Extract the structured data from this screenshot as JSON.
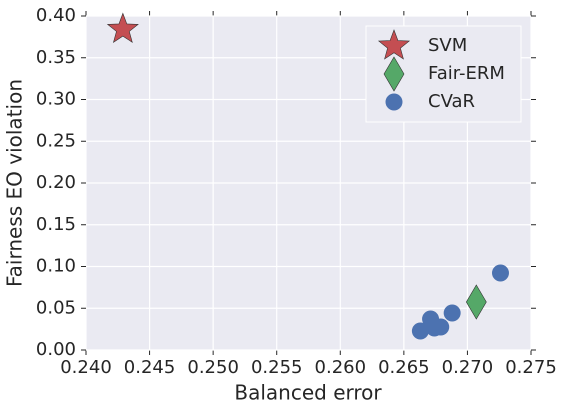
{
  "chart_data": {
    "type": "scatter",
    "x_label": "Balanced error",
    "y_label": "Fairness EO violation",
    "xlim": [
      0.24,
      0.275
    ],
    "ylim": [
      0,
      0.4
    ],
    "xticks": [
      {
        "value": 0.24,
        "label": "0.240"
      },
      {
        "value": 0.245,
        "label": "0.245"
      },
      {
        "value": 0.25,
        "label": "0.250"
      },
      {
        "value": 0.255,
        "label": "0.255"
      },
      {
        "value": 0.26,
        "label": "0.260"
      },
      {
        "value": 0.265,
        "label": "0.265"
      },
      {
        "value": 0.27,
        "label": "0.270"
      },
      {
        "value": 0.275,
        "label": "0.275"
      }
    ],
    "yticks": [
      {
        "value": 0,
        "label": "0.00"
      },
      {
        "value": 0.05,
        "label": "0.05"
      },
      {
        "value": 0.1,
        "label": "0.10"
      },
      {
        "value": 0.15,
        "label": "0.15"
      },
      {
        "value": 0.2,
        "label": "0.20"
      },
      {
        "value": 0.25,
        "label": "0.25"
      },
      {
        "value": 0.3,
        "label": "0.30"
      },
      {
        "value": 0.35,
        "label": "0.35"
      },
      {
        "value": 0.4,
        "label": "0.40"
      }
    ],
    "grid": true,
    "legend": "upper right",
    "series": [
      {
        "name": "SVM",
        "color": "#c44e52",
        "marker": "star",
        "x": [
          0.2429
        ],
        "values": [
          0.384
        ]
      },
      {
        "name": "Fair-ERM",
        "color": "#55a868",
        "marker": "diamond",
        "x": [
          0.2707
        ],
        "values": [
          0.0575
        ]
      },
      {
        "name": "CVaR",
        "color": "#4c72b0",
        "marker": "circle",
        "x": [
          0.2726,
          0.2688,
          0.2679,
          0.2671,
          0.2674,
          0.2663
        ],
        "values": [
          0.0922,
          0.0443,
          0.0275,
          0.0371,
          0.0263,
          0.0228
        ]
      }
    ]
  }
}
